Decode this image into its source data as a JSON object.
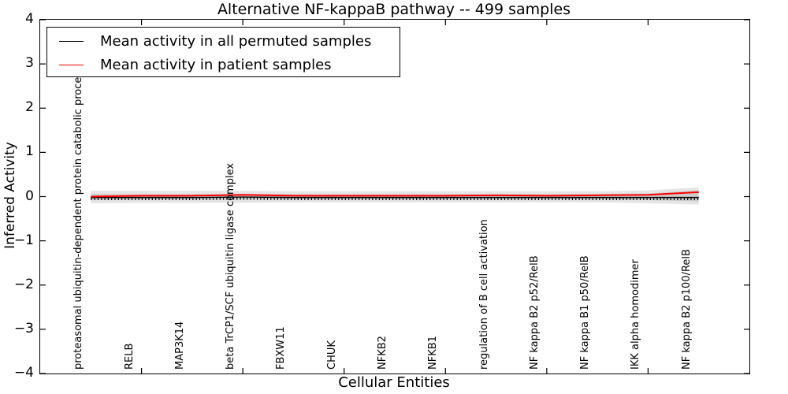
{
  "figure": {
    "title": "Alternative NF-kappaB pathway -- 499 samples"
  },
  "axes": {
    "x_label": "Cellular Entities",
    "y_label": "Inferred Activity",
    "y_ticks": [
      {
        "value": 4,
        "label": "4"
      },
      {
        "value": 3,
        "label": "3"
      },
      {
        "value": 2,
        "label": "2"
      },
      {
        "value": 1,
        "label": "1"
      },
      {
        "value": 0,
        "label": "0"
      },
      {
        "value": -1,
        "label": "−1"
      },
      {
        "value": -2,
        "label": "−2"
      },
      {
        "value": -3,
        "label": "−3"
      },
      {
        "value": -4,
        "label": "−4"
      }
    ],
    "x_tick_positions": [
      2,
      4,
      6,
      8,
      10,
      12
    ]
  },
  "legend": {
    "entries": [
      {
        "label": "Mean activity in all permuted samples",
        "color": "#000000"
      },
      {
        "label": "Mean activity in patient samples",
        "color": "#ff0000"
      }
    ]
  },
  "chart_data": {
    "type": "line",
    "title": "Alternative NF-kappaB pathway -- 499 samples",
    "xlabel": "Cellular Entities",
    "ylabel": "Inferred Activity",
    "xlim": [
      0,
      14
    ],
    "ylim": [
      -4,
      4
    ],
    "grid": false,
    "legend_position": "upper left",
    "categories": [
      "proteasomal ubiquitin-dependent protein catabolic process",
      "RELB",
      "MAP3K14",
      "beta TrCP1/SCF ubiquitin ligase complex",
      "FBXW11",
      "CHUK",
      "NFKB2",
      "NFKB1",
      "regulation of B cell activation",
      "NF kappa B2 p52/RelB",
      "NF kappa B1 p50/RelB",
      "IKK alpha homodimer",
      "NF kappa B2 p100/RelB"
    ],
    "x": [
      1,
      2,
      3,
      4,
      5,
      6,
      7,
      8,
      9,
      10,
      11,
      12,
      13
    ],
    "series": [
      {
        "name": "Mean activity in all permuted samples",
        "color": "#000000",
        "style": "solid-with-tick-markers",
        "values": [
          -0.02,
          -0.02,
          -0.02,
          -0.01,
          -0.02,
          -0.02,
          -0.02,
          -0.02,
          -0.02,
          -0.02,
          -0.02,
          -0.02,
          -0.02
        ]
      },
      {
        "name": "Mean activity in patient samples",
        "color": "#ff0000",
        "style": "solid",
        "values": [
          0.0,
          0.02,
          0.02,
          0.04,
          0.02,
          0.02,
          0.02,
          0.02,
          0.03,
          0.02,
          0.03,
          0.04,
          0.1
        ]
      }
    ],
    "bands": [
      {
        "name": "outer",
        "color": "#000000",
        "opacity": 0.1,
        "upper": [
          0.13,
          0.13,
          0.13,
          0.13,
          0.12,
          0.12,
          0.12,
          0.12,
          0.12,
          0.12,
          0.12,
          0.14,
          0.21
        ],
        "lower": [
          -0.15,
          -0.14,
          -0.14,
          -0.14,
          -0.13,
          -0.13,
          -0.13,
          -0.13,
          -0.13,
          -0.13,
          -0.13,
          -0.15,
          -0.18
        ]
      },
      {
        "name": "inner",
        "color": "#000000",
        "opacity": 0.1,
        "upper": [
          0.06,
          0.05,
          0.05,
          0.06,
          0.05,
          0.05,
          0.05,
          0.05,
          0.05,
          0.05,
          0.06,
          0.07,
          0.15
        ],
        "lower": [
          -0.08,
          -0.07,
          -0.07,
          -0.07,
          -0.07,
          -0.07,
          -0.07,
          -0.07,
          -0.07,
          -0.07,
          -0.07,
          -0.08,
          -0.11
        ]
      }
    ]
  }
}
